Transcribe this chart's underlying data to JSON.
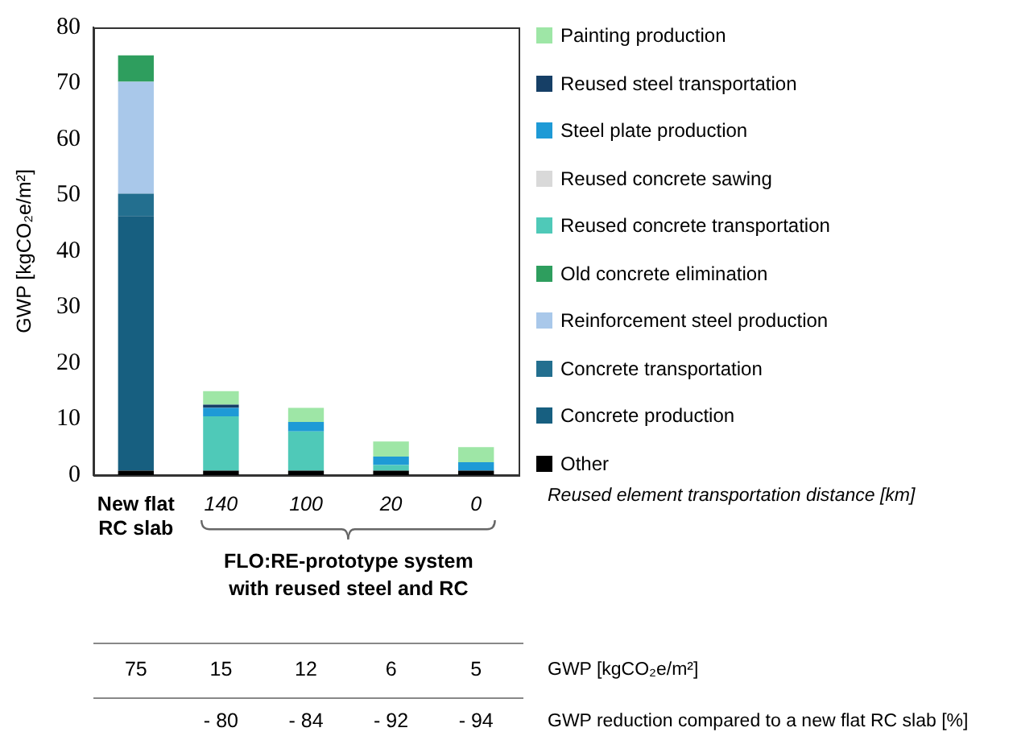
{
  "chart_data": {
    "type": "bar",
    "stacked": true,
    "ylabel": "GWP [kgCO₂e/m²]",
    "categories": [
      "New flat RC slab",
      "140",
      "100",
      "20",
      "0"
    ],
    "series": [
      {
        "name": "Other",
        "color": "#000000",
        "values": [
          0.8,
          0.8,
          0.8,
          0.8,
          0.8
        ]
      },
      {
        "name": "Concrete production",
        "color": "#175f80",
        "values": [
          45.5,
          0,
          0,
          0,
          0
        ]
      },
      {
        "name": "Concrete transportation",
        "color": "#236f8f",
        "values": [
          4,
          0,
          0,
          0,
          0
        ]
      },
      {
        "name": "Reinforcement steel production",
        "color": "#a9c8ea",
        "values": [
          20,
          0,
          0,
          0,
          0
        ]
      },
      {
        "name": "Old concrete elimination",
        "color": "#2e9e5e",
        "values": [
          4.7,
          0,
          0,
          0,
          0
        ]
      },
      {
        "name": "Reused concrete transportation",
        "color": "#4fc9b8",
        "values": [
          0,
          9.7,
          7,
          1,
          0
        ]
      },
      {
        "name": "Reused concrete sawing",
        "color": "#d9d9d9",
        "values": [
          0,
          0,
          0,
          0,
          0
        ]
      },
      {
        "name": "Steel plate production",
        "color": "#1e9ad6",
        "values": [
          0,
          1.5,
          1.7,
          1.5,
          1.5
        ]
      },
      {
        "name": "Reused steel transportation",
        "color": "#163f66",
        "values": [
          0,
          0.6,
          0,
          0,
          0
        ]
      },
      {
        "name": "Painting production",
        "color": "#9ee6a6",
        "values": [
          0,
          2.4,
          2.5,
          2.7,
          2.7
        ]
      }
    ],
    "ylim": [
      0,
      80
    ],
    "yticks": [
      0,
      10,
      20,
      30,
      40,
      50,
      60,
      70,
      80
    ],
    "grid": false,
    "legend": "right",
    "annotations": [
      "Reused element transportation distance [km]",
      "FLO:RE-prototype system with reused steel and RC",
      "GWP [kgCO₂e/m²]",
      "GWP reduction compared to a new flat RC slab [%]",
      "75",
      "15",
      "12",
      "6",
      "5",
      "- 80",
      "- 84",
      "- 92",
      "- 94"
    ]
  }
}
